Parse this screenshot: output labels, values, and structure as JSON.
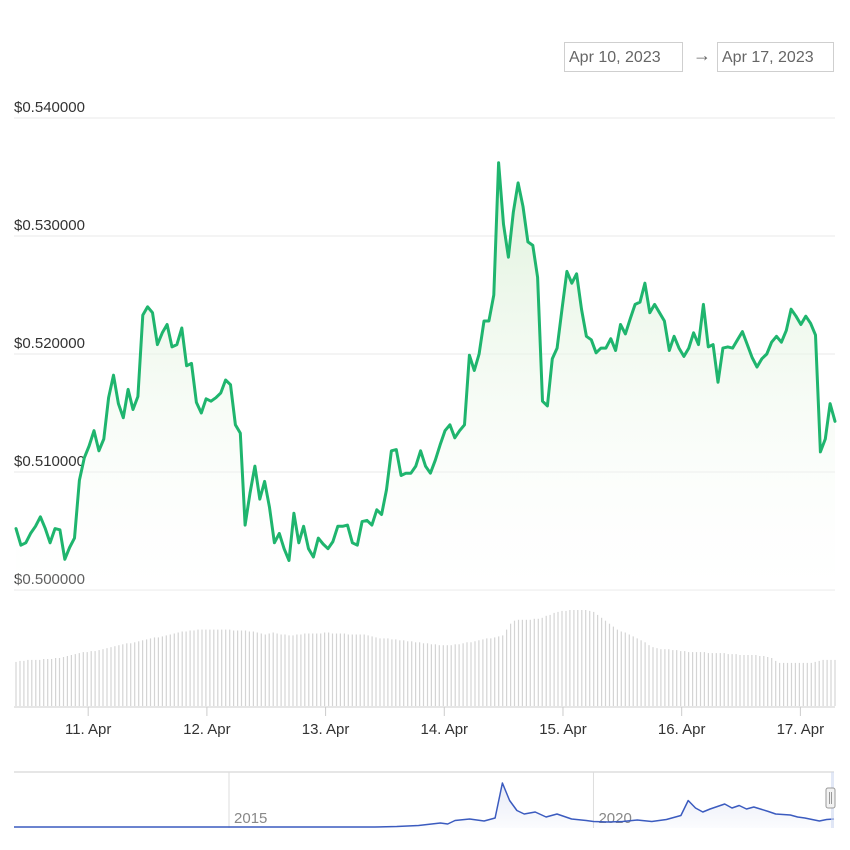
{
  "range_selector": {
    "from": "Apr 10, 2023",
    "to": "Apr 17, 2023",
    "arrow": "→"
  },
  "colors": {
    "price_line": "#1fb56e",
    "area_top": "#daf0d6",
    "volume_bar": "#d4d4d4",
    "navigator_line": "#3b5bbf",
    "grid": "#e8e8e8"
  },
  "chart_data": [
    {
      "type": "line",
      "title": "",
      "xlabel": "",
      "ylabel": "",
      "ylim": [
        0.5,
        0.54
      ],
      "x_range": [
        "2023-04-10 09:00",
        "2023-04-17 07:00"
      ],
      "y_tick_labels": [
        "$0.540000",
        "$0.530000",
        "$0.520000",
        "$0.510000",
        "$0.500000"
      ],
      "y_ticks": [
        0.54,
        0.53,
        0.52,
        0.51,
        0.5
      ],
      "x_tick_labels": [
        "11. Apr",
        "12. Apr",
        "13. Apr",
        "14. Apr",
        "15. Apr",
        "16. Apr",
        "17. Apr"
      ],
      "x_ticks": [
        "2023-04-11",
        "2023-04-12",
        "2023-04-13",
        "2023-04-14",
        "2023-04-15",
        "2023-04-16",
        "2023-04-17"
      ],
      "grid": true,
      "series": [
        {
          "values": [
            0.5052,
            0.5038,
            0.504,
            0.5048,
            0.5054,
            0.5062,
            0.5052,
            0.504,
            0.5052,
            0.5051,
            0.5026,
            0.5036,
            0.5044,
            0.5093,
            0.5112,
            0.5122,
            0.5135,
            0.5118,
            0.5128,
            0.5163,
            0.5182,
            0.5158,
            0.5146,
            0.517,
            0.5153,
            0.5164,
            0.5233,
            0.524,
            0.5235,
            0.5208,
            0.5218,
            0.5225,
            0.5206,
            0.5208,
            0.5222,
            0.519,
            0.5192,
            0.5159,
            0.515,
            0.5162,
            0.516,
            0.5163,
            0.5167,
            0.5178,
            0.5174,
            0.514,
            0.5133,
            0.5055,
            0.5082,
            0.5105,
            0.5077,
            0.5092,
            0.507,
            0.504,
            0.5048,
            0.5035,
            0.5025,
            0.5065,
            0.504,
            0.5054,
            0.5035,
            0.5028,
            0.5044,
            0.5039,
            0.5035,
            0.5041,
            0.5054,
            0.5054,
            0.5055,
            0.504,
            0.5038,
            0.5058,
            0.5059,
            0.5055,
            0.5068,
            0.5064,
            0.5085,
            0.5118,
            0.5119,
            0.5097,
            0.5099,
            0.5099,
            0.5105,
            0.5118,
            0.5105,
            0.5099,
            0.511,
            0.5123,
            0.5135,
            0.514,
            0.5129,
            0.5135,
            0.514,
            0.5199,
            0.5186,
            0.52,
            0.5228,
            0.5228,
            0.525,
            0.5362,
            0.531,
            0.5282,
            0.532,
            0.5345,
            0.5325,
            0.5295,
            0.5292,
            0.5265,
            0.516,
            0.5156,
            0.5196,
            0.5205,
            0.5238,
            0.527,
            0.526,
            0.5268,
            0.5238,
            0.5215,
            0.5212,
            0.5201,
            0.5205,
            0.5205,
            0.5213,
            0.5203,
            0.5225,
            0.5217,
            0.523,
            0.5242,
            0.5244,
            0.526,
            0.5235,
            0.5242,
            0.5235,
            0.5228,
            0.5203,
            0.5215,
            0.5205,
            0.5198,
            0.5205,
            0.5218,
            0.5208,
            0.5242,
            0.5206,
            0.5208,
            0.5176,
            0.5205,
            0.5206,
            0.5205,
            0.5212,
            0.5219,
            0.5208,
            0.5197,
            0.5189,
            0.5196,
            0.52,
            0.521,
            0.5215,
            0.521,
            0.522,
            0.5238,
            0.5232,
            0.5225,
            0.5232,
            0.5226,
            0.5216,
            0.5117,
            0.5128,
            0.5158,
            0.5143
          ]
        }
      ]
    },
    {
      "type": "bar",
      "title": "",
      "xlabel": "",
      "ylabel": "",
      "x_range": [
        "2023-04-10 09:00",
        "2023-04-17 07:00"
      ],
      "series": [
        {
          "values": [
            0.45,
            0.46,
            0.46,
            0.47,
            0.47,
            0.47,
            0.47,
            0.48,
            0.48,
            0.48,
            0.49,
            0.49,
            0.5,
            0.51,
            0.52,
            0.53,
            0.54,
            0.55,
            0.55,
            0.56,
            0.56,
            0.57,
            0.58,
            0.59,
            0.6,
            0.61,
            0.62,
            0.63,
            0.64,
            0.64,
            0.65,
            0.66,
            0.67,
            0.68,
            0.69,
            0.7,
            0.7,
            0.71,
            0.72,
            0.73,
            0.74,
            0.75,
            0.76,
            0.76,
            0.77,
            0.77,
            0.78,
            0.78,
            0.78,
            0.78,
            0.78,
            0.78,
            0.78,
            0.78,
            0.78,
            0.77,
            0.77,
            0.77,
            0.77,
            0.76,
            0.76,
            0.75,
            0.74,
            0.73,
            0.74,
            0.75,
            0.74,
            0.73,
            0.73,
            0.72,
            0.72,
            0.73,
            0.73,
            0.74,
            0.74,
            0.74,
            0.74,
            0.74,
            0.75,
            0.75,
            0.74,
            0.74,
            0.74,
            0.74,
            0.73,
            0.73,
            0.73,
            0.73,
            0.73,
            0.72,
            0.71,
            0.7,
            0.69,
            0.69,
            0.69,
            0.68,
            0.68,
            0.67,
            0.67,
            0.66,
            0.66,
            0.65,
            0.65,
            0.64,
            0.64,
            0.63,
            0.63,
            0.62,
            0.62,
            0.62,
            0.62,
            0.63,
            0.63,
            0.64,
            0.65,
            0.65,
            0.66,
            0.67,
            0.68,
            0.69,
            0.69,
            0.7,
            0.71,
            0.72,
            0.78,
            0.84,
            0.87,
            0.88,
            0.88,
            0.88,
            0.88,
            0.89,
            0.89,
            0.9,
            0.92,
            0.93,
            0.95,
            0.96,
            0.97,
            0.97,
            0.98,
            0.98,
            0.98,
            0.98,
            0.98,
            0.97,
            0.96,
            0.93,
            0.9,
            0.87,
            0.84,
            0.81,
            0.78,
            0.76,
            0.75,
            0.73,
            0.71,
            0.69,
            0.67,
            0.65,
            0.62,
            0.6,
            0.59,
            0.58,
            0.58,
            0.58,
            0.57,
            0.57,
            0.56,
            0.56,
            0.55,
            0.55,
            0.55,
            0.55,
            0.55,
            0.54,
            0.54,
            0.54,
            0.54,
            0.54,
            0.53,
            0.53,
            0.53,
            0.52,
            0.52,
            0.52,
            0.52,
            0.52,
            0.51,
            0.51,
            0.5,
            0.49,
            0.46,
            0.44,
            0.44,
            0.44,
            0.44,
            0.44,
            0.44,
            0.44,
            0.44,
            0.44,
            0.45,
            0.46,
            0.47,
            0.47,
            0.47,
            0.47
          ]
        }
      ]
    },
    {
      "type": "line",
      "title": "",
      "xlabel": "",
      "ylabel": "",
      "x_range": [
        2012.05,
        2023.3
      ],
      "x_tick_labels": [
        "2015",
        "2020"
      ],
      "x_ticks": [
        2015,
        2020
      ],
      "series": [
        {
          "values": [
            [
              2012.05,
              0.02
            ],
            [
              2012.5,
              0.02
            ],
            [
              2013.0,
              0.02
            ],
            [
              2013.5,
              0.02
            ],
            [
              2014.0,
              0.02
            ],
            [
              2014.5,
              0.02
            ],
            [
              2015.0,
              0.02
            ],
            [
              2015.5,
              0.02
            ],
            [
              2016.0,
              0.02
            ],
            [
              2016.5,
              0.02
            ],
            [
              2017.0,
              0.02
            ],
            [
              2017.3,
              0.03
            ],
            [
              2017.6,
              0.05
            ],
            [
              2017.9,
              0.1
            ],
            [
              2018.0,
              0.08
            ],
            [
              2018.1,
              0.15
            ],
            [
              2018.3,
              0.18
            ],
            [
              2018.5,
              0.14
            ],
            [
              2018.65,
              0.2
            ],
            [
              2018.75,
              0.9
            ],
            [
              2018.85,
              0.55
            ],
            [
              2018.95,
              0.35
            ],
            [
              2019.05,
              0.28
            ],
            [
              2019.2,
              0.32
            ],
            [
              2019.35,
              0.22
            ],
            [
              2019.5,
              0.28
            ],
            [
              2019.7,
              0.18
            ],
            [
              2019.9,
              0.15
            ],
            [
              2020.0,
              0.13
            ],
            [
              2020.2,
              0.12
            ],
            [
              2020.4,
              0.13
            ],
            [
              2020.6,
              0.16
            ],
            [
              2020.8,
              0.13
            ],
            [
              2021.0,
              0.17
            ],
            [
              2021.2,
              0.25
            ],
            [
              2021.3,
              0.55
            ],
            [
              2021.4,
              0.4
            ],
            [
              2021.5,
              0.32
            ],
            [
              2021.6,
              0.38
            ],
            [
              2021.8,
              0.48
            ],
            [
              2021.9,
              0.4
            ],
            [
              2022.0,
              0.45
            ],
            [
              2022.1,
              0.38
            ],
            [
              2022.2,
              0.42
            ],
            [
              2022.4,
              0.33
            ],
            [
              2022.5,
              0.28
            ],
            [
              2022.7,
              0.26
            ],
            [
              2022.8,
              0.22
            ],
            [
              2022.9,
              0.2
            ],
            [
              2023.0,
              0.17
            ],
            [
              2023.1,
              0.14
            ],
            [
              2023.2,
              0.17
            ],
            [
              2023.3,
              0.18
            ]
          ]
        }
      ]
    }
  ]
}
